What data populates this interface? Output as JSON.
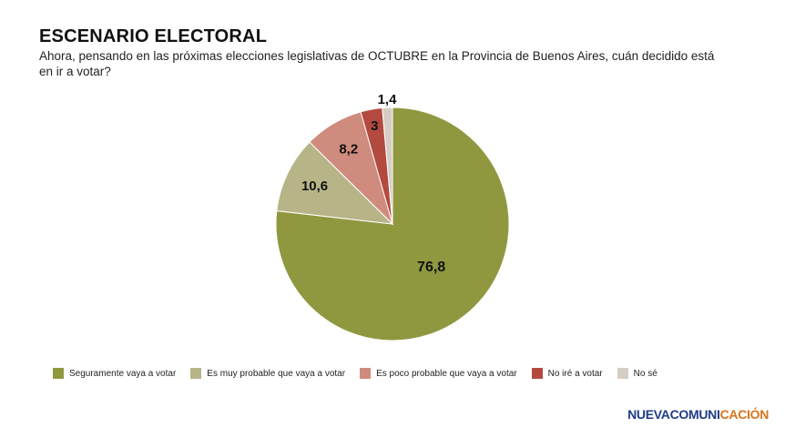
{
  "header": {
    "title": "ESCENARIO ELECTORAL",
    "subtitle": "Ahora, pensando en las próximas elecciones legislativas de OCTUBRE en la Provincia de Buenos Aires, cuán decidido está en ir a votar?"
  },
  "chart_data": {
    "type": "pie",
    "title": "",
    "legend_position": "bottom",
    "slices": [
      {
        "label": "Seguramente vaya a votar",
        "value": 76.8,
        "display": "76,8",
        "color": "#8f983f"
      },
      {
        "label": "Es muy probable que vaya a votar",
        "value": 10.6,
        "display": "10,6",
        "color": "#b7b487"
      },
      {
        "label": "Es poco probable que vaya a votar",
        "value": 8.2,
        "display": "8,2",
        "color": "#cf8b7d"
      },
      {
        "label": "No iré a votar",
        "value": 3,
        "display": "3",
        "color": "#b34a3f"
      },
      {
        "label": "No sé",
        "value": 1.4,
        "display": "1,4",
        "color": "#d6cec4"
      }
    ]
  },
  "brand": {
    "part1": "NUEVACOMUNI",
    "part2": "CACIÓN"
  }
}
